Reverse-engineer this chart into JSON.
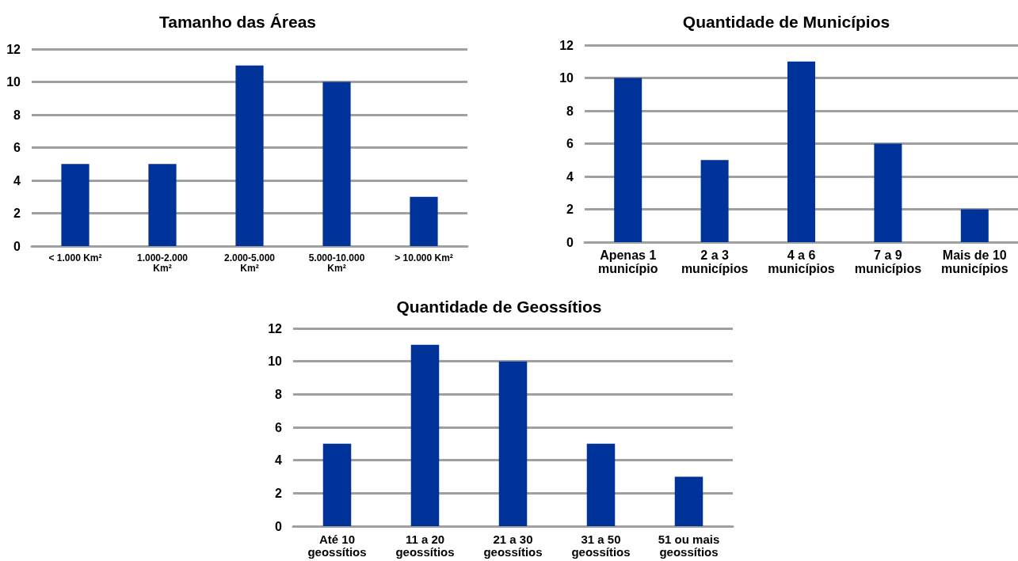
{
  "chart_data": [
    {
      "type": "bar",
      "title": "Tamanho das Áreas",
      "categories": [
        "< 1.000 Km²",
        "1.000-2.000\nKm²",
        "2.000-5.000\nKm²",
        "5.000-10.000\nKm²",
        "> 10.000 Km²"
      ],
      "values": [
        5,
        5,
        11,
        10,
        3
      ],
      "color": "#003399",
      "ylim": [
        0,
        12
      ],
      "yticks": [
        0,
        2,
        4,
        6,
        8,
        10,
        12
      ],
      "grid": "y"
    },
    {
      "type": "bar",
      "title": "Quantidade de Municípios",
      "categories": [
        "Apenas 1\nmunicípio",
        "2 a 3\nmunicípios",
        "4 a 6\nmunicípios",
        "7 a 9\nmunicípios",
        "Mais de 10\nmunicípios"
      ],
      "values": [
        10,
        5,
        11,
        6,
        2
      ],
      "color": "#003399",
      "ylim": [
        0,
        12
      ],
      "yticks": [
        0,
        2,
        4,
        6,
        8,
        10,
        12
      ],
      "grid": "y"
    },
    {
      "type": "bar",
      "title": "Quantidade de Geossítios",
      "categories": [
        "Até 10\ngeossítios",
        "11 a 20\ngeossítios",
        "21 a 30\ngeossítios",
        "31 a 50\ngeossítios",
        "51 ou mais\ngeossítios"
      ],
      "values": [
        5,
        11,
        10,
        5,
        3
      ],
      "color": "#003399",
      "ylim": [
        0,
        12
      ],
      "yticks": [
        0,
        2,
        4,
        6,
        8,
        10,
        12
      ],
      "grid": "y"
    }
  ]
}
